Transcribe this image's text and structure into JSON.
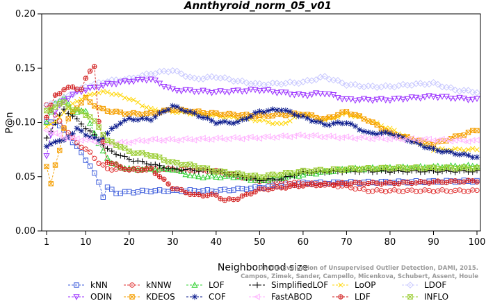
{
  "chart_data": {
    "type": "line",
    "title": "Annthyroid_norm_05_v01",
    "xlabel": "Neighborhood size",
    "ylabel": "P@n",
    "xlim": [
      1,
      100
    ],
    "ylim": [
      0,
      0.2
    ],
    "x_ticks": [
      1,
      10,
      20,
      30,
      40,
      50,
      60,
      70,
      80,
      90,
      100
    ],
    "y_ticks": [
      "0.00",
      "0.05",
      "0.10",
      "0.15",
      "0.20"
    ],
    "legend_position": "bottom",
    "watermark": [
      "On the Evaluation of Unsupervised Outlier Detection, DAMI, 2015.",
      "Campos, Zimek, Sander, Campello, Micenkova, Schubert, Assent, Houle"
    ],
    "series": [
      {
        "name": "kNN",
        "color": "#3b5bdb",
        "marker": "square",
        "knots": [
          [
            1,
            0.1
          ],
          [
            3,
            0.101
          ],
          [
            5,
            0.092
          ],
          [
            7,
            0.082
          ],
          [
            9,
            0.072
          ],
          [
            11,
            0.06
          ],
          [
            13,
            0.045
          ],
          [
            14,
            0.032
          ],
          [
            15,
            0.04
          ],
          [
            17,
            0.035
          ],
          [
            25,
            0.037
          ],
          [
            40,
            0.037
          ],
          [
            50,
            0.04
          ],
          [
            60,
            0.044
          ],
          [
            100,
            0.046
          ]
        ]
      },
      {
        "name": "kNNW",
        "color": "#e03131",
        "marker": "circle",
        "knots": [
          [
            1,
            0.117
          ],
          [
            3,
            0.106
          ],
          [
            5,
            0.096
          ],
          [
            7,
            0.085
          ],
          [
            9,
            0.078
          ],
          [
            11,
            0.072
          ],
          [
            13,
            0.063
          ],
          [
            15,
            0.057
          ],
          [
            20,
            0.057
          ],
          [
            30,
            0.057
          ],
          [
            40,
            0.055
          ],
          [
            50,
            0.046
          ],
          [
            60,
            0.044
          ],
          [
            70,
            0.041
          ],
          [
            75,
            0.037
          ],
          [
            100,
            0.037
          ]
        ]
      },
      {
        "name": "LOF",
        "color": "#2fd12f",
        "marker": "triangle-up",
        "knots": [
          [
            1,
            0.1
          ],
          [
            3,
            0.118
          ],
          [
            5,
            0.123
          ],
          [
            7,
            0.11
          ],
          [
            10,
            0.11
          ],
          [
            13,
            0.08
          ],
          [
            16,
            0.062
          ],
          [
            20,
            0.057
          ],
          [
            30,
            0.057
          ],
          [
            35,
            0.05
          ],
          [
            45,
            0.05
          ],
          [
            50,
            0.046
          ],
          [
            60,
            0.052
          ],
          [
            70,
            0.057
          ],
          [
            100,
            0.06
          ]
        ]
      },
      {
        "name": "SimplifiedLOF",
        "color": "#000000",
        "marker": "plus",
        "knots": [
          [
            1,
            0.085
          ],
          [
            3,
            0.1
          ],
          [
            5,
            0.112
          ],
          [
            7,
            0.106
          ],
          [
            10,
            0.095
          ],
          [
            13,
            0.085
          ],
          [
            15,
            0.075
          ],
          [
            20,
            0.066
          ],
          [
            30,
            0.057
          ],
          [
            40,
            0.055
          ],
          [
            50,
            0.047
          ],
          [
            55,
            0.048
          ],
          [
            60,
            0.054
          ],
          [
            70,
            0.055
          ],
          [
            100,
            0.055
          ]
        ]
      },
      {
        "name": "LoOP",
        "color": "#ffd500",
        "marker": "x",
        "knots": [
          [
            1,
            0.097
          ],
          [
            3,
            0.1
          ],
          [
            5,
            0.11
          ],
          [
            8,
            0.12
          ],
          [
            12,
            0.127
          ],
          [
            15,
            0.128
          ],
          [
            20,
            0.122
          ],
          [
            25,
            0.112
          ],
          [
            30,
            0.11
          ],
          [
            40,
            0.106
          ],
          [
            50,
            0.102
          ],
          [
            55,
            0.098
          ],
          [
            60,
            0.108
          ],
          [
            65,
            0.102
          ],
          [
            70,
            0.108
          ],
          [
            75,
            0.102
          ],
          [
            80,
            0.094
          ],
          [
            90,
            0.075
          ],
          [
            100,
            0.075
          ]
        ]
      },
      {
        "name": "LDOF",
        "color": "#c8c8ff",
        "marker": "diamond",
        "knots": [
          [
            1,
            0.115
          ],
          [
            5,
            0.122
          ],
          [
            10,
            0.133
          ],
          [
            15,
            0.138
          ],
          [
            20,
            0.14
          ],
          [
            25,
            0.145
          ],
          [
            30,
            0.148
          ],
          [
            35,
            0.14
          ],
          [
            40,
            0.142
          ],
          [
            45,
            0.138
          ],
          [
            50,
            0.135
          ],
          [
            55,
            0.136
          ],
          [
            60,
            0.137
          ],
          [
            65,
            0.142
          ],
          [
            70,
            0.135
          ],
          [
            75,
            0.133
          ],
          [
            80,
            0.133
          ],
          [
            85,
            0.135
          ],
          [
            90,
            0.136
          ],
          [
            95,
            0.13
          ],
          [
            100,
            0.128
          ]
        ]
      },
      {
        "name": "ODIN",
        "color": "#9b30ff",
        "marker": "triangle-down",
        "knots": [
          [
            1,
            0.069
          ],
          [
            3,
            0.11
          ],
          [
            5,
            0.12
          ],
          [
            8,
            0.128
          ],
          [
            12,
            0.132
          ],
          [
            15,
            0.135
          ],
          [
            20,
            0.138
          ],
          [
            25,
            0.14
          ],
          [
            30,
            0.13
          ],
          [
            40,
            0.128
          ],
          [
            50,
            0.13
          ],
          [
            60,
            0.125
          ],
          [
            65,
            0.127
          ],
          [
            70,
            0.121
          ],
          [
            80,
            0.121
          ],
          [
            90,
            0.124
          ],
          [
            100,
            0.121
          ]
        ]
      },
      {
        "name": "KDEOS",
        "color": "#f59f00",
        "marker": "square-x",
        "knots": [
          [
            1,
            0.06
          ],
          [
            2,
            0.043
          ],
          [
            3,
            0.06
          ],
          [
            4,
            0.075
          ],
          [
            5,
            0.095
          ],
          [
            7,
            0.11
          ],
          [
            10,
            0.122
          ],
          [
            13,
            0.113
          ],
          [
            16,
            0.11
          ],
          [
            20,
            0.108
          ],
          [
            25,
            0.108
          ],
          [
            30,
            0.112
          ],
          [
            40,
            0.108
          ],
          [
            50,
            0.106
          ],
          [
            60,
            0.108
          ],
          [
            65,
            0.103
          ],
          [
            70,
            0.11
          ],
          [
            75,
            0.102
          ],
          [
            80,
            0.09
          ],
          [
            90,
            0.08
          ],
          [
            100,
            0.093
          ]
        ]
      },
      {
        "name": "COF",
        "color": "#0a1a8c",
        "marker": "asterisk",
        "knots": [
          [
            1,
            0.077
          ],
          [
            3,
            0.083
          ],
          [
            5,
            0.083
          ],
          [
            8,
            0.094
          ],
          [
            10,
            0.089
          ],
          [
            13,
            0.083
          ],
          [
            15,
            0.09
          ],
          [
            18,
            0.1
          ],
          [
            20,
            0.103
          ],
          [
            25,
            0.103
          ],
          [
            30,
            0.115
          ],
          [
            35,
            0.108
          ],
          [
            40,
            0.1
          ],
          [
            45,
            0.1
          ],
          [
            50,
            0.11
          ],
          [
            55,
            0.112
          ],
          [
            60,
            0.105
          ],
          [
            65,
            0.098
          ],
          [
            70,
            0.1
          ],
          [
            75,
            0.09
          ],
          [
            80,
            0.09
          ],
          [
            90,
            0.075
          ],
          [
            100,
            0.068
          ]
        ]
      },
      {
        "name": "FastABOD",
        "color": "#ffb3ff",
        "marker": "triangle-left",
        "knots": [
          [
            1,
            0.093
          ],
          [
            5,
            0.086
          ],
          [
            10,
            0.084
          ],
          [
            15,
            0.08
          ],
          [
            20,
            0.082
          ],
          [
            25,
            0.084
          ],
          [
            30,
            0.084
          ],
          [
            40,
            0.085
          ],
          [
            50,
            0.086
          ],
          [
            60,
            0.088
          ],
          [
            70,
            0.086
          ],
          [
            80,
            0.085
          ],
          [
            90,
            0.084
          ],
          [
            100,
            0.083
          ]
        ]
      },
      {
        "name": "LDF",
        "color": "#d21e1e",
        "marker": "circle-plus",
        "knots": [
          [
            1,
            0.105
          ],
          [
            3,
            0.125
          ],
          [
            5,
            0.13
          ],
          [
            7,
            0.133
          ],
          [
            9,
            0.13
          ],
          [
            10,
            0.14
          ],
          [
            11,
            0.148
          ],
          [
            12,
            0.152
          ],
          [
            13,
            0.1
          ],
          [
            15,
            0.064
          ],
          [
            20,
            0.056
          ],
          [
            25,
            0.057
          ],
          [
            30,
            0.04
          ],
          [
            35,
            0.033
          ],
          [
            40,
            0.033
          ],
          [
            42,
            0.028
          ],
          [
            45,
            0.03
          ],
          [
            50,
            0.038
          ],
          [
            55,
            0.04
          ],
          [
            60,
            0.042
          ],
          [
            70,
            0.044
          ],
          [
            80,
            0.044
          ],
          [
            100,
            0.046
          ]
        ]
      },
      {
        "name": "INFLO",
        "color": "#9acd32",
        "marker": "hourglass",
        "knots": [
          [
            1,
            0.11
          ],
          [
            3,
            0.115
          ],
          [
            5,
            0.118
          ],
          [
            7,
            0.112
          ],
          [
            9,
            0.11
          ],
          [
            11,
            0.105
          ],
          [
            13,
            0.096
          ],
          [
            15,
            0.083
          ],
          [
            18,
            0.078
          ],
          [
            20,
            0.073
          ],
          [
            25,
            0.07
          ],
          [
            30,
            0.063
          ],
          [
            35,
            0.06
          ],
          [
            40,
            0.055
          ],
          [
            50,
            0.05
          ],
          [
            60,
            0.055
          ],
          [
            70,
            0.057
          ],
          [
            80,
            0.058
          ],
          [
            90,
            0.058
          ],
          [
            100,
            0.058
          ]
        ]
      }
    ]
  }
}
